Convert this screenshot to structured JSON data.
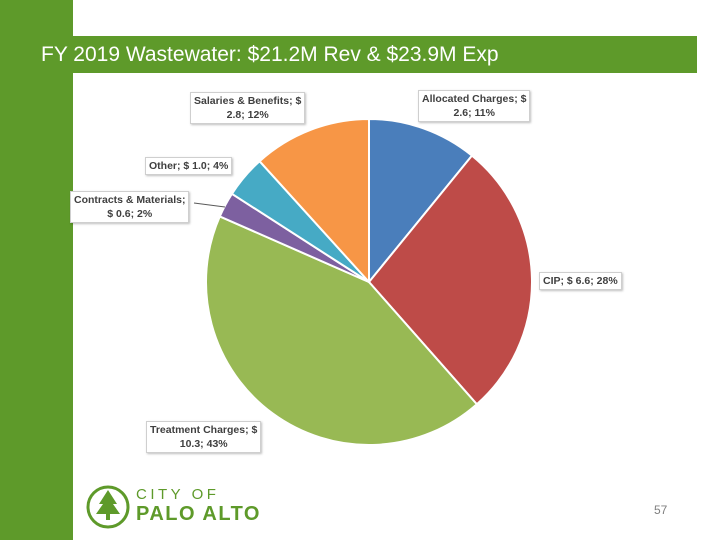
{
  "slide": {
    "title": "FY 2019 Wastewater: $21.2M Rev & $23.9M Exp",
    "page_number": "57",
    "logo": {
      "line1": "CITY OF",
      "line2": "PALO ALTO",
      "icon": "tree-icon"
    }
  },
  "colors": {
    "brand_green": "#5e9a2a"
  },
  "chart_data": {
    "type": "pie",
    "title": "",
    "units": "$M",
    "slices": [
      {
        "label": "Allocated Charges",
        "value": 2.6,
        "percent": 11,
        "color": "#4a7ebb",
        "label_line1": "Allocated Charges; $",
        "label_line2": "2.6; 11%"
      },
      {
        "label": "CIP",
        "value": 6.6,
        "percent": 28,
        "color": "#be4b48",
        "label_line1": "CIP; $ 6.6; 28%",
        "label_line2": ""
      },
      {
        "label": "Treatment Charges",
        "value": 10.3,
        "percent": 43,
        "color": "#98b954",
        "label_line1": "Treatment Charges; $",
        "label_line2": "10.3; 43%"
      },
      {
        "label": "Contracts & Materials",
        "value": 0.6,
        "percent": 2,
        "color": "#7d60a0",
        "label_line1": "Contracts & Materials;",
        "label_line2": "$ 0.6; 2%"
      },
      {
        "label": "Other",
        "value": 1.0,
        "percent": 4,
        "color": "#46aac5",
        "label_line1": "Other; $ 1.0; 4%",
        "label_line2": ""
      },
      {
        "label": "Salaries & Benefits",
        "value": 2.8,
        "percent": 12,
        "color": "#f79646",
        "label_line1": "Salaries & Benefits; $",
        "label_line2": "2.8; 12%"
      }
    ]
  }
}
